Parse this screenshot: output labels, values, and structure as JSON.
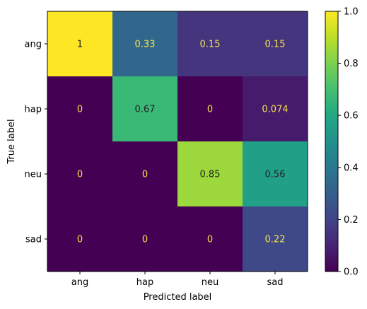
{
  "chart_data": {
    "type": "heatmap",
    "title": "",
    "xlabel": "Predicted label",
    "ylabel": "True label",
    "x_categories": [
      "ang",
      "hap",
      "neu",
      "sad"
    ],
    "y_categories": [
      "ang",
      "hap",
      "neu",
      "sad"
    ],
    "values": [
      [
        1,
        0.33,
        0.15,
        0.15
      ],
      [
        0,
        0.67,
        0,
        0.074
      ],
      [
        0,
        0,
        0.85,
        0.56
      ],
      [
        0,
        0,
        0,
        0.22
      ]
    ],
    "value_labels": [
      [
        "1",
        "0.33",
        "0.15",
        "0.15"
      ],
      [
        "0",
        "0.67",
        "0",
        "0.074"
      ],
      [
        "0",
        "0",
        "0.85",
        "0.56"
      ],
      [
        "0",
        "0",
        "0",
        "0.22"
      ]
    ],
    "colormap": "viridis",
    "vmin": 0.0,
    "vmax": 1.0,
    "colorbar_ticks": [
      "0.0",
      "0.2",
      "0.4",
      "0.6",
      "0.8",
      "1.0"
    ],
    "grid": false
  }
}
